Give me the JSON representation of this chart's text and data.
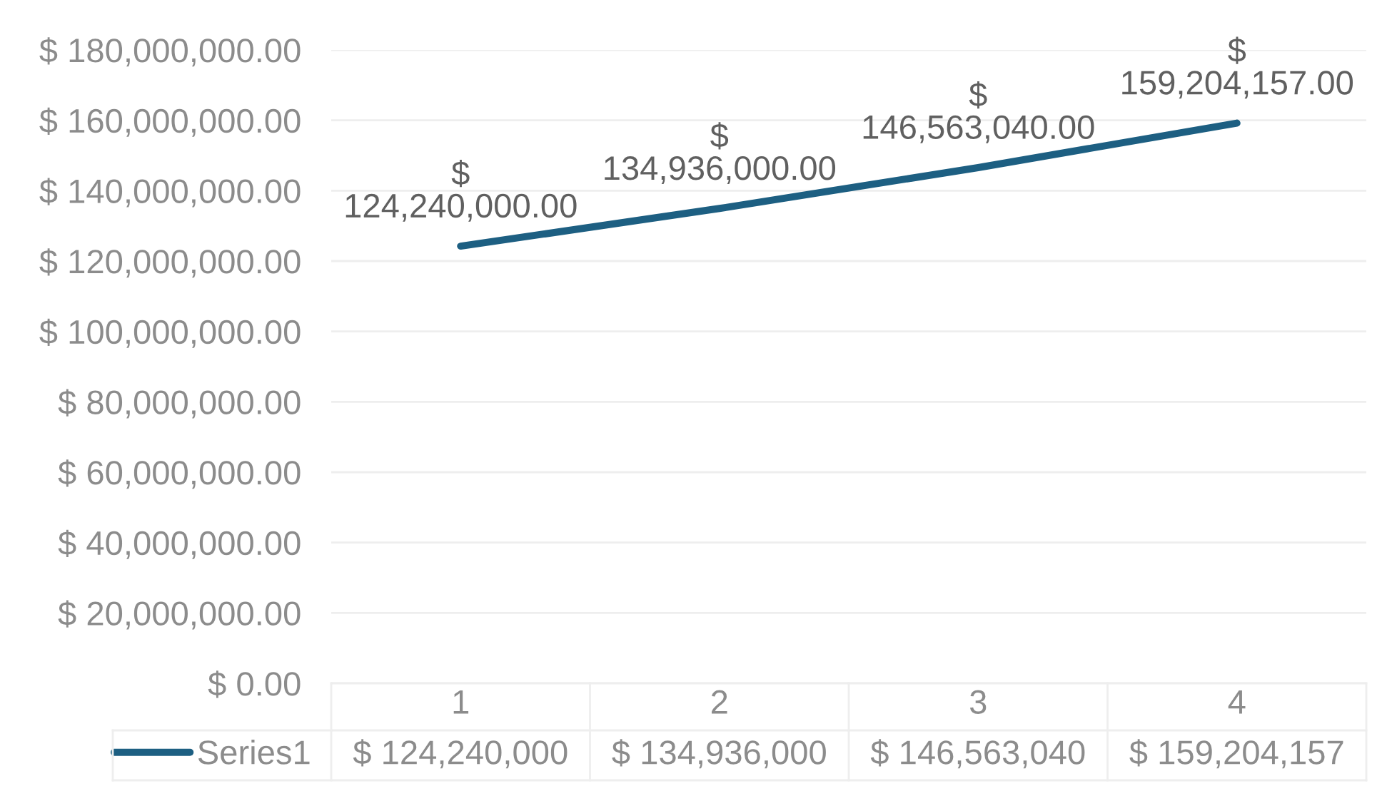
{
  "chart_data": {
    "type": "line",
    "categories": [
      "1",
      "2",
      "3",
      "4"
    ],
    "series": [
      {
        "name": "Series1",
        "color": "#1d5f82",
        "values": [
          124240000,
          134936000,
          146563040,
          159204157
        ],
        "value_labels": [
          "$ 124,240,000.00",
          "$ 134,936,000.00",
          "$ 146,563,040.00",
          "$ 159,204,157.00"
        ]
      }
    ],
    "ylim": [
      0,
      180000000
    ],
    "yticks": [
      {
        "value": 0,
        "label": "$ 0.00"
      },
      {
        "value": 20000000,
        "label": "$ 20,000,000.00"
      },
      {
        "value": 40000000,
        "label": "$ 40,000,000.00"
      },
      {
        "value": 60000000,
        "label": "$ 60,000,000.00"
      },
      {
        "value": 80000000,
        "label": "$ 80,000,000.00"
      },
      {
        "value": 100000000,
        "label": "$ 100,000,000.00"
      },
      {
        "value": 120000000,
        "label": "$ 120,000,000.00"
      },
      {
        "value": 140000000,
        "label": "$ 140,000,000.00"
      },
      {
        "value": 160000000,
        "label": "$ 160,000,000.00"
      },
      {
        "value": 180000000,
        "label": "$ 180,000,000.00"
      }
    ],
    "grid": "y",
    "legend": "bottom left",
    "annotations": [
      "$ 124,240,000",
      "$ 134,936,000",
      "$ 146,563,040",
      "$ 159,204,157"
    ]
  }
}
